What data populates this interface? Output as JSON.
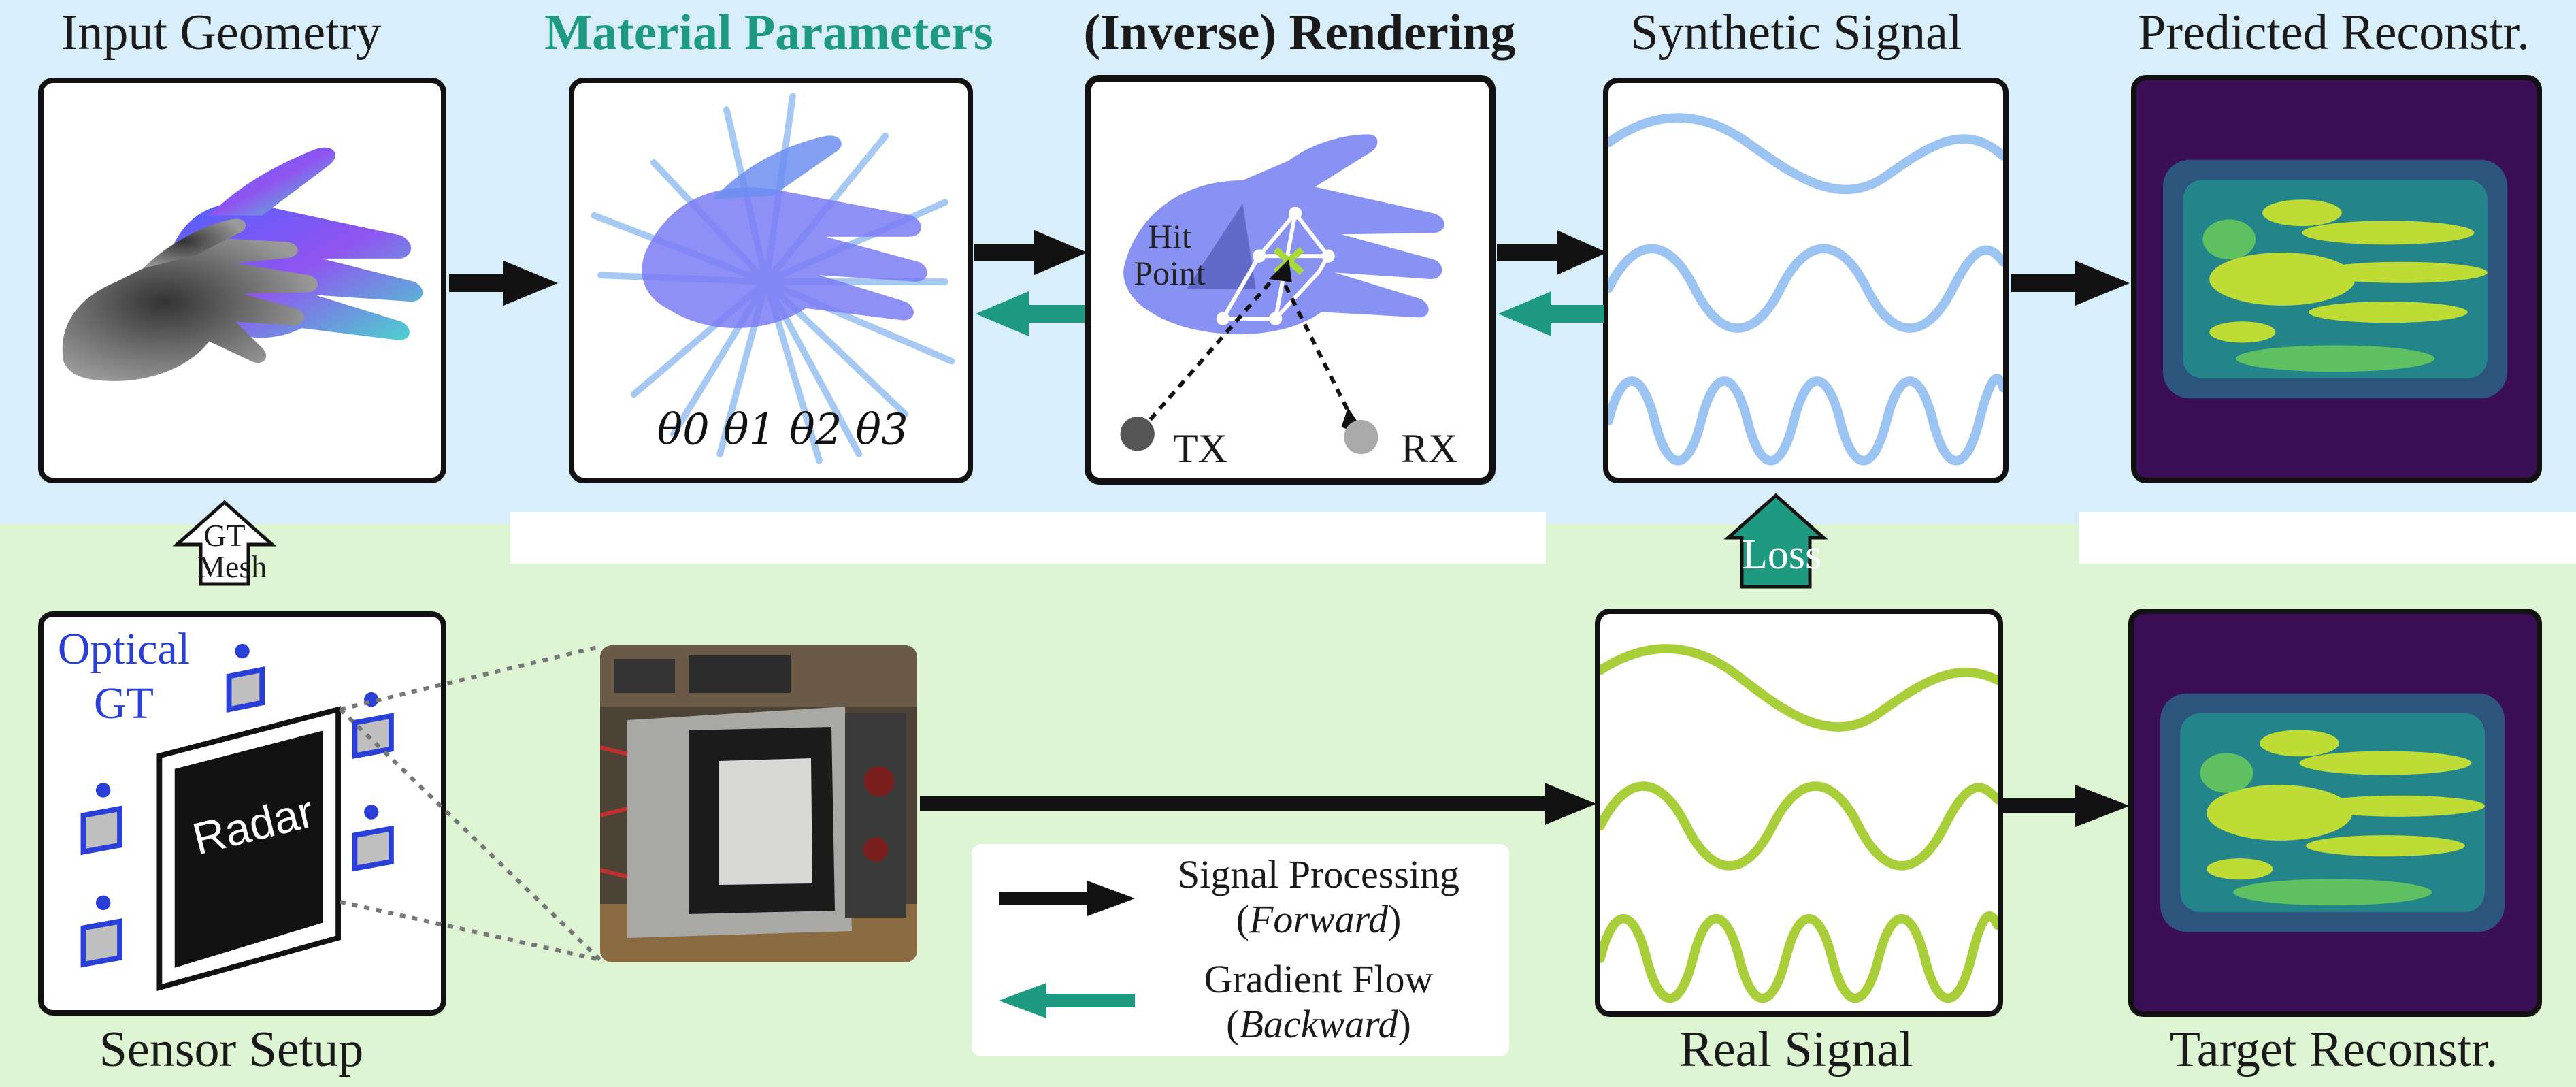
{
  "titles": {
    "input_geometry": "Input Geometry",
    "material_parameters": "Material Parameters",
    "inverse_rendering_prefix": "(Inverse)",
    "inverse_rendering_suffix": "Rendering",
    "synthetic_signal": "Synthetic Signal",
    "predicted_reconstr": "Predicted Reconstr.",
    "sensor_setup": "Sensor Setup",
    "real_signal": "Real Signal",
    "target_reconstr": "Target Reconstr."
  },
  "material_params": [
    "θ0",
    "θ1",
    "θ2",
    "θ3"
  ],
  "rendering": {
    "hit_line1": "Hit",
    "hit_line2": "Point",
    "tx": "TX",
    "rx": "RX"
  },
  "gt_mesh": {
    "line1": "GT",
    "line2": "Mesh"
  },
  "loss": "Loss",
  "sensor": {
    "optical_line1": "Optical",
    "optical_line2": "GT",
    "radar": "Radar"
  },
  "legend": {
    "forward_line1": "Signal Processing",
    "forward_line2": "Forward",
    "backward_line1": "Gradient Flow",
    "backward_line2": "Backward"
  },
  "colors": {
    "top_bg": "#d8eefa",
    "bottom_bg": "#ddf5d3",
    "accent_green": "#1d9a80",
    "synthetic_wave": "#9cc4f2",
    "real_wave": "#a8cf3a",
    "optical_blue": "#2a3fd8",
    "recon_bg": "#3b0f55"
  }
}
